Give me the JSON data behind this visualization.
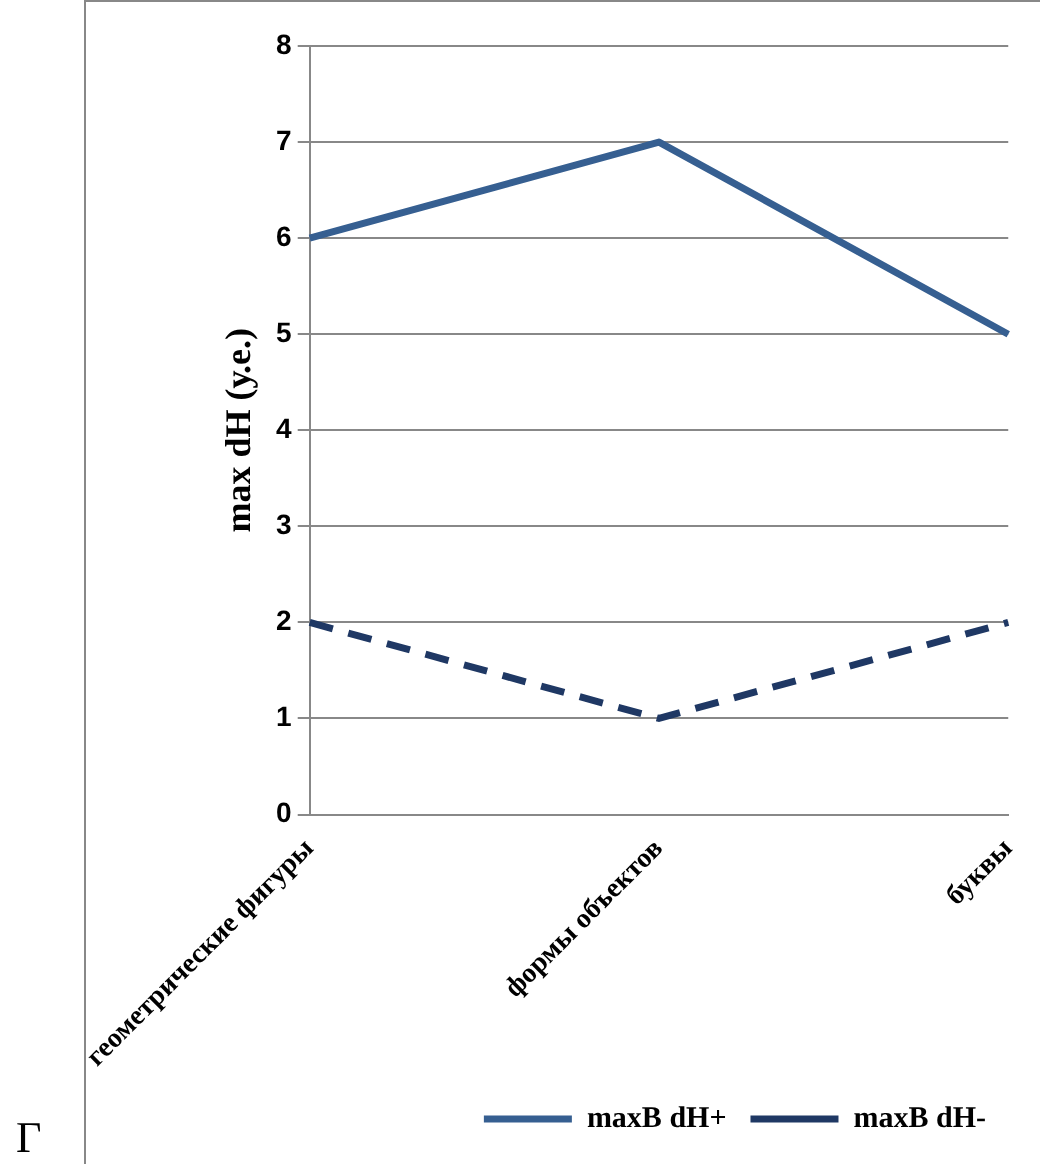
{
  "chart_data": {
    "type": "line",
    "ylabel": "max dH (у.е.)",
    "categories": [
      "геометрические фигуры",
      "формы объектов",
      "буквы"
    ],
    "series": [
      {
        "name": "maxB dH+",
        "color": "#365f91",
        "values": [
          6,
          7,
          5
        ],
        "line_style": "solid"
      },
      {
        "name": "maxB dH-",
        "color": "#1f3864",
        "values": [
          2,
          1,
          2
        ],
        "line_style": "dashed"
      }
    ],
    "ylim": [
      0,
      8
    ],
    "yticks": [
      0,
      1,
      2,
      3,
      4,
      5,
      6,
      7,
      8
    ],
    "grid": "y",
    "legend": "bottom right",
    "marker": "none",
    "annotations": [
      "Г"
    ]
  }
}
